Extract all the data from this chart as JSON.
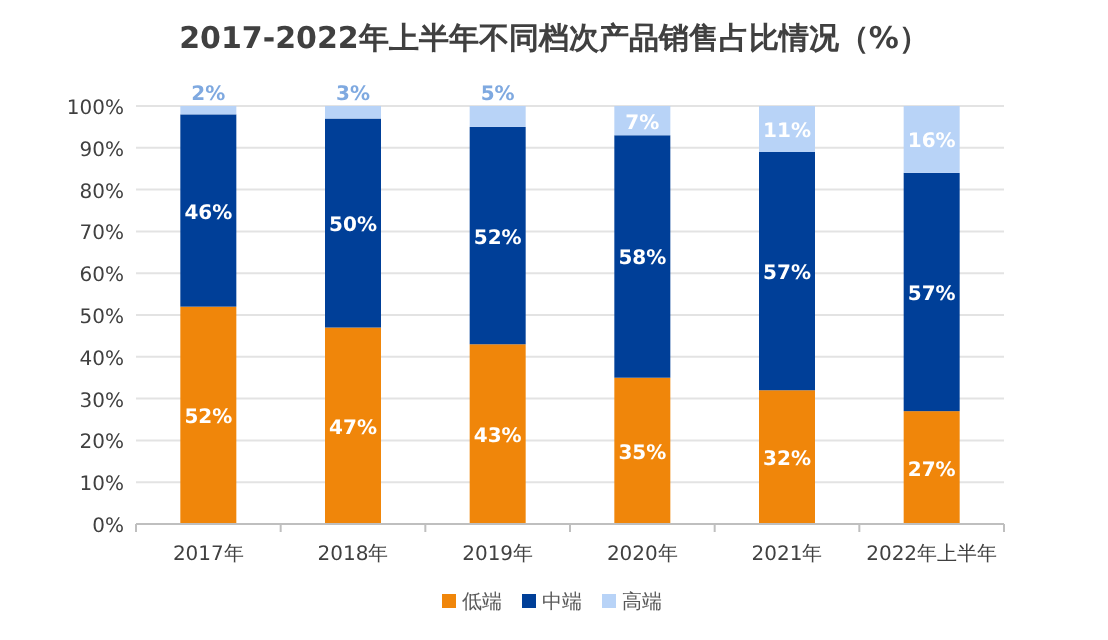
{
  "chart_data": {
    "type": "bar",
    "title": "2017-2022年上半年不同档次产品销售占比情况（%）",
    "stacked": true,
    "grid": "y",
    "legend": "bottom",
    "categories": [
      "2017年",
      "2018年",
      "2019年",
      "2020年",
      "2021年",
      "2022年上半年"
    ],
    "ylim": [
      0,
      100
    ],
    "yticks": [
      {
        "value": 0,
        "label": "0%"
      },
      {
        "value": 10,
        "label": "10%"
      },
      {
        "value": 20,
        "label": "20%"
      },
      {
        "value": 30,
        "label": "30%"
      },
      {
        "value": 40,
        "label": "40%"
      },
      {
        "value": 50,
        "label": "50%"
      },
      {
        "value": 60,
        "label": "60%"
      },
      {
        "value": 70,
        "label": "70%"
      },
      {
        "value": 80,
        "label": "80%"
      },
      {
        "value": 90,
        "label": "90%"
      },
      {
        "value": 100,
        "label": "100%"
      }
    ],
    "series": [
      {
        "name": "低端",
        "color": "#f0860a",
        "values": [
          52,
          47,
          43,
          35,
          32,
          27
        ],
        "value_labels": [
          "52%",
          "47%",
          "43%",
          "35%",
          "32%",
          "27%"
        ]
      },
      {
        "name": "中端",
        "color": "#003f98",
        "values": [
          46,
          50,
          52,
          58,
          57,
          57
        ],
        "value_labels": [
          "46%",
          "50%",
          "52%",
          "58%",
          "57%",
          "57%"
        ]
      },
      {
        "name": "高端",
        "color": "#b8d3f7",
        "values": [
          2,
          3,
          5,
          7,
          11,
          16
        ],
        "value_labels": [
          "2%",
          "3%",
          "5%",
          "7%",
          "11%",
          "16%"
        ]
      }
    ]
  }
}
